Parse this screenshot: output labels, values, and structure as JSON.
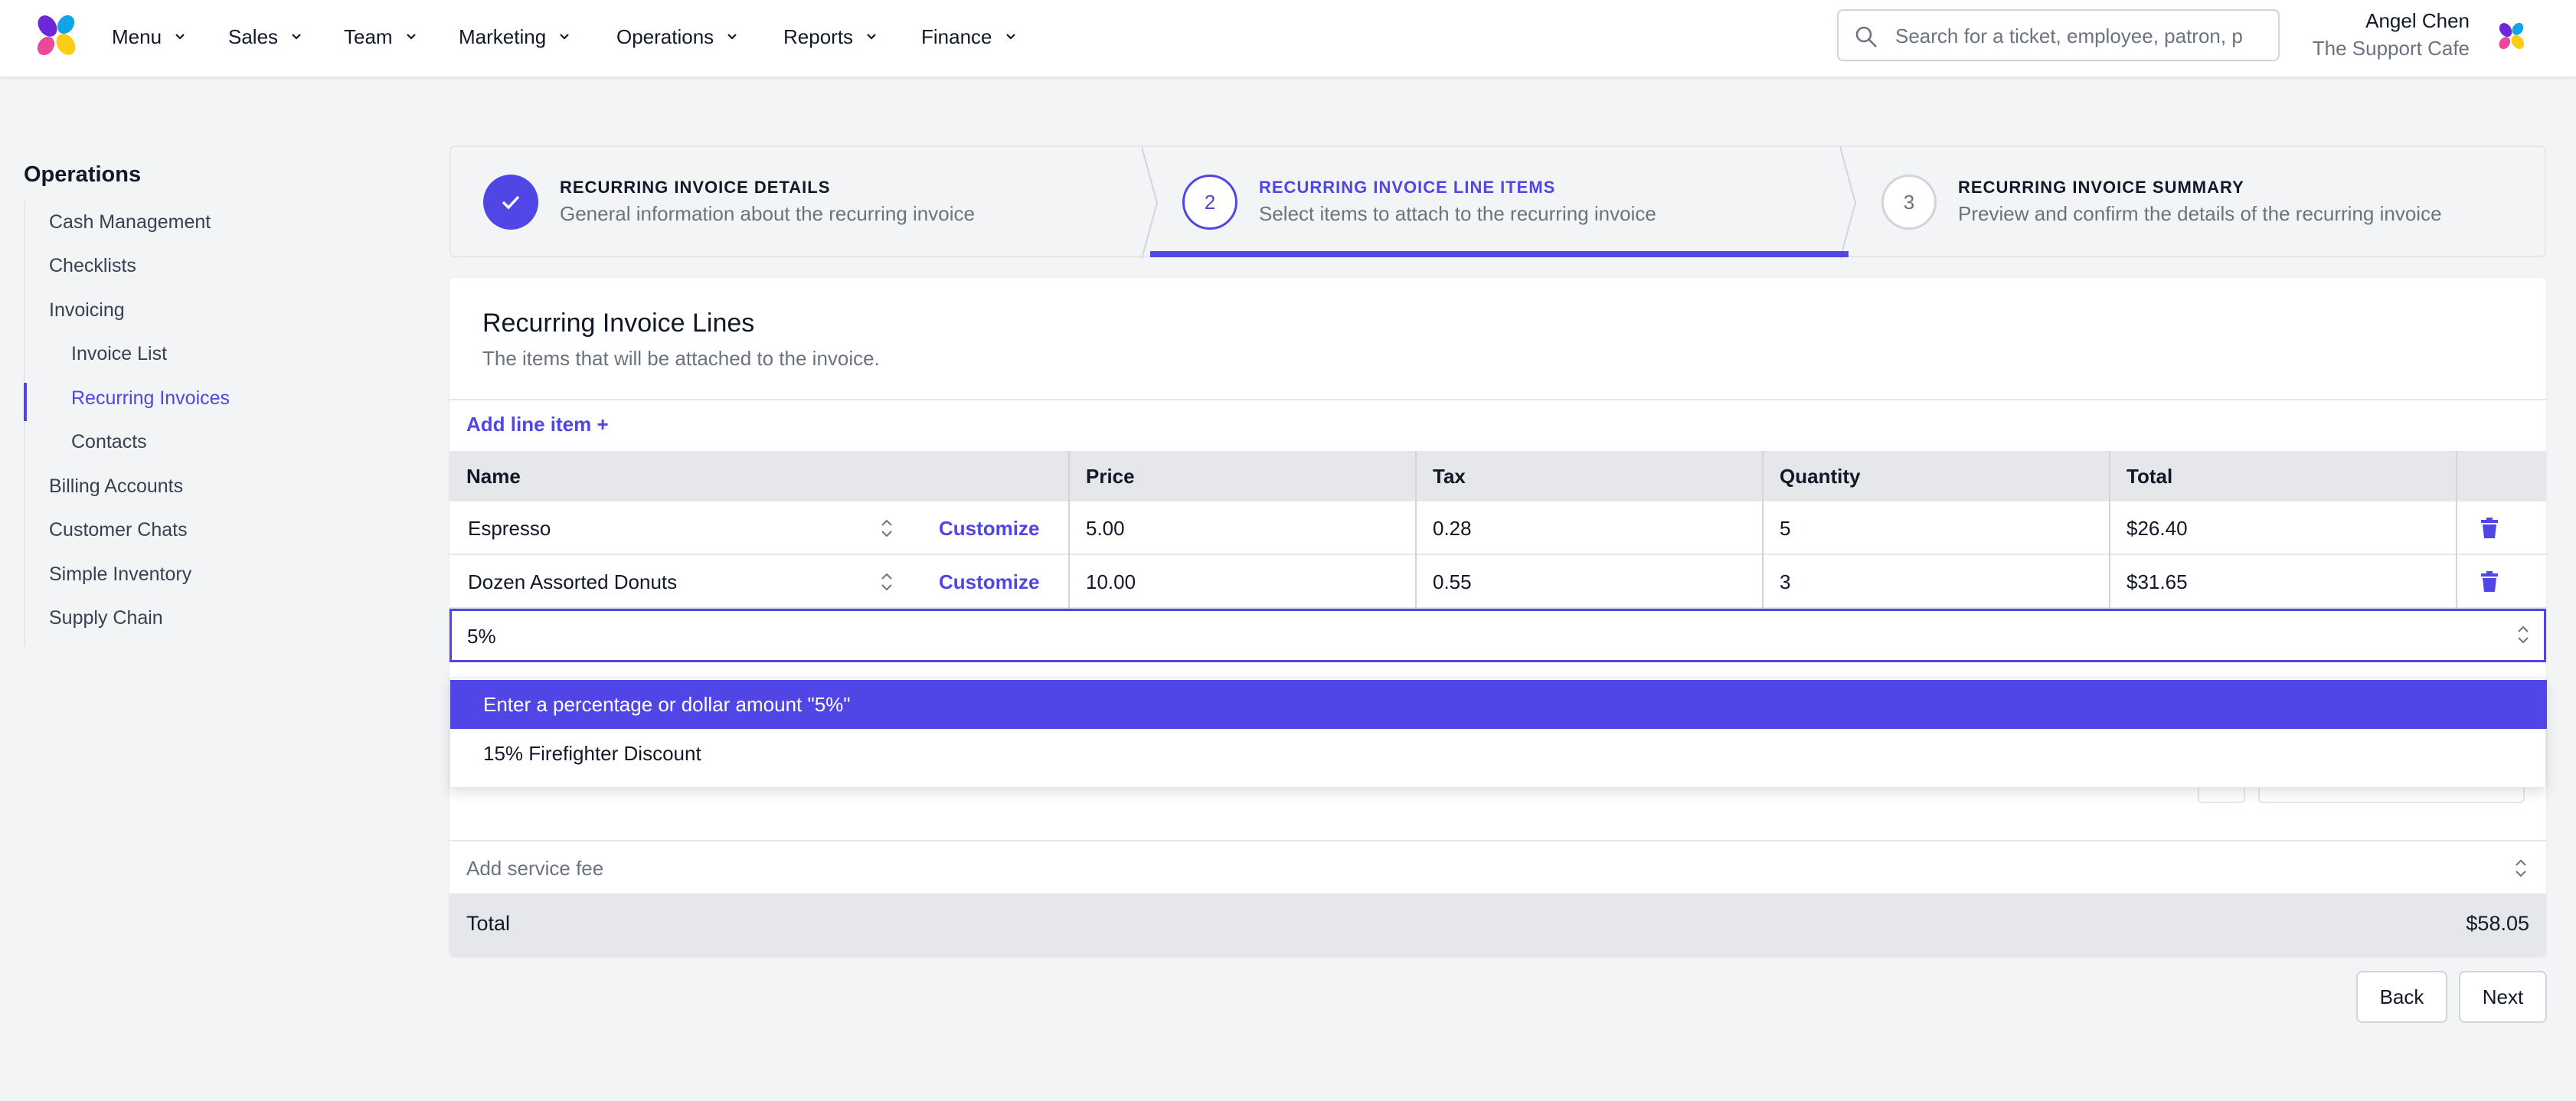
{
  "nav": {
    "items": [
      {
        "label": "Menu"
      },
      {
        "label": "Sales"
      },
      {
        "label": "Team"
      },
      {
        "label": "Marketing"
      },
      {
        "label": "Operations"
      },
      {
        "label": "Reports"
      },
      {
        "label": "Finance"
      }
    ],
    "search_placeholder": "Search for a ticket, employee, patron, p",
    "user_name": "Angel Chen",
    "user_org": "The Support Cafe"
  },
  "sidebar": {
    "title": "Operations",
    "items": [
      {
        "label": "Cash Management"
      },
      {
        "label": "Checklists"
      },
      {
        "label": "Invoicing"
      },
      {
        "label": "Invoice List"
      },
      {
        "label": "Recurring Invoices"
      },
      {
        "label": "Contacts"
      },
      {
        "label": "Billing Accounts"
      },
      {
        "label": "Customer Chats"
      },
      {
        "label": "Simple Inventory"
      },
      {
        "label": "Supply Chain"
      }
    ],
    "active": "Recurring Invoices"
  },
  "steps": [
    {
      "number": "1",
      "title": "RECURRING INVOICE DETAILS",
      "desc": "General information about the recurring invoice",
      "state": "complete"
    },
    {
      "number": "2",
      "title": "RECURRING INVOICE LINE ITEMS",
      "desc": "Select items to attach to the recurring invoice",
      "state": "current"
    },
    {
      "number": "3",
      "title": "RECURRING INVOICE SUMMARY",
      "desc": "Preview and confirm the details of the recurring invoice",
      "state": "upcoming"
    }
  ],
  "card": {
    "title": "Recurring Invoice Lines",
    "subtitle": "The items that will be attached to the invoice.",
    "add_line_label": "Add line item +"
  },
  "table": {
    "columns": [
      "Name",
      "Price",
      "Tax",
      "Quantity",
      "Total"
    ],
    "customize_label": "Customize",
    "rows": [
      {
        "name": "Espresso",
        "price": "5.00",
        "tax": "0.28",
        "quantity": "5",
        "total": "$26.40"
      },
      {
        "name": "Dozen Assorted Donuts",
        "price": "10.00",
        "tax": "0.55",
        "quantity": "3",
        "total": "$31.65"
      }
    ]
  },
  "discount": {
    "value": "5%",
    "options": [
      {
        "label": "Enter a percentage or dollar amount \"5%\"",
        "highlighted": true
      },
      {
        "label": "15% Firefighter Discount",
        "highlighted": false
      }
    ]
  },
  "service_fee": {
    "placeholder": "Add service fee"
  },
  "total": {
    "label": "Total",
    "value": "$58.05"
  },
  "buttons": {
    "back": "Back",
    "next": "Next"
  },
  "colors": {
    "accent": "#4f46e5",
    "background": "#f3f4f6",
    "header_gray": "#e5e7eb"
  }
}
